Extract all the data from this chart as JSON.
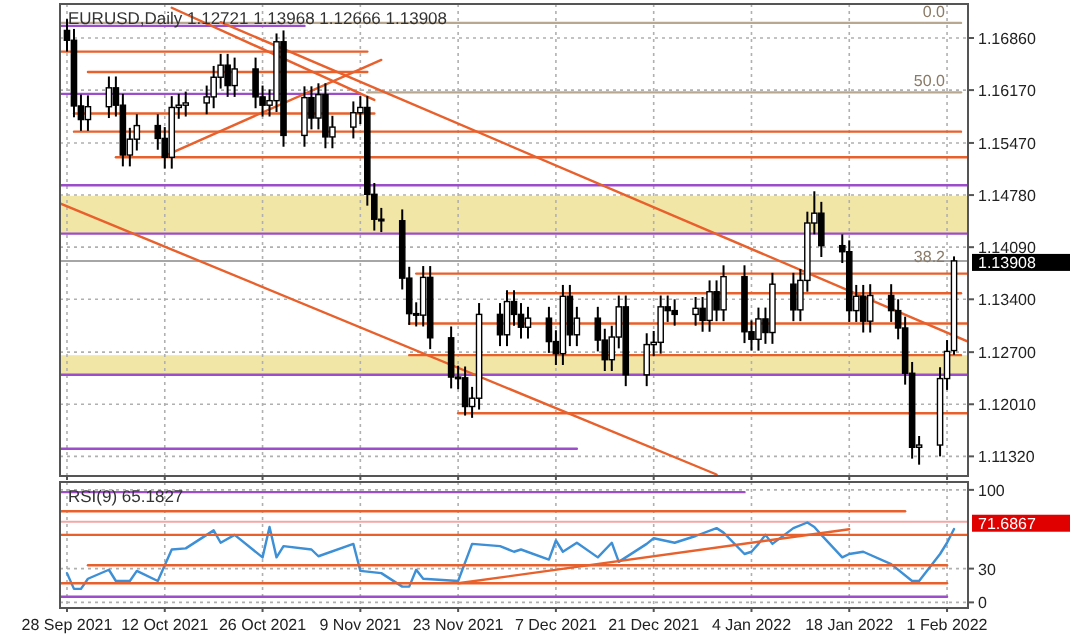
{
  "chart_data": [
    {
      "type": "candlestick",
      "title": "EURUSD,Daily 1.12721 1.13968 1.12666 1.13908",
      "color": "#000000",
      "x": [
        "2021-09-28",
        "2021-09-29",
        "2021-09-30",
        "2021-10-01",
        "2021-10-04",
        "2021-10-05",
        "2021-10-06",
        "2021-10-07",
        "2021-10-08",
        "2021-10-11",
        "2021-10-12",
        "2021-10-13",
        "2021-10-14",
        "2021-10-15",
        "2021-10-18",
        "2021-10-19",
        "2021-10-20",
        "2021-10-21",
        "2021-10-22",
        "2021-10-25",
        "2021-10-26",
        "2021-10-27",
        "2021-10-28",
        "2021-10-29",
        "2021-11-01",
        "2021-11-02",
        "2021-11-03",
        "2021-11-04",
        "2021-11-05",
        "2021-11-08",
        "2021-11-09",
        "2021-11-10",
        "2021-11-11",
        "2021-11-12",
        "2021-11-15",
        "2021-11-16",
        "2021-11-17",
        "2021-11-18",
        "2021-11-19",
        "2021-11-22",
        "2021-11-23",
        "2021-11-24",
        "2021-11-25",
        "2021-11-26",
        "2021-11-29",
        "2021-11-30",
        "2021-12-01",
        "2021-12-02",
        "2021-12-03",
        "2021-12-06",
        "2021-12-07",
        "2021-12-08",
        "2021-12-09",
        "2021-12-10",
        "2021-12-13",
        "2021-12-14",
        "2021-12-15",
        "2021-12-16",
        "2021-12-17",
        "2021-12-20",
        "2021-12-21",
        "2021-12-22",
        "2021-12-23",
        "2021-12-24",
        "2021-12-27",
        "2021-12-28",
        "2021-12-29",
        "2021-12-30",
        "2021-12-31",
        "2022-01-03",
        "2022-01-04",
        "2022-01-05",
        "2022-01-06",
        "2022-01-07",
        "2022-01-10",
        "2022-01-11",
        "2022-01-12",
        "2022-01-13",
        "2022-01-14",
        "2022-01-17",
        "2022-01-18",
        "2022-01-19",
        "2022-01-20",
        "2022-01-21",
        "2022-01-24",
        "2022-01-25",
        "2022-01-26",
        "2022-01-27",
        "2022-01-28",
        "2022-01-31",
        "2022-02-01",
        "2022-02-02"
      ],
      "ohlc": [
        [
          1.1696,
          1.1711,
          1.1668,
          1.1683
        ],
        [
          1.1683,
          1.1698,
          1.1581,
          1.1596
        ],
        [
          1.1596,
          1.1611,
          1.1563,
          1.1578
        ],
        [
          1.1578,
          1.161,
          1.1563,
          1.1595
        ],
        [
          1.1595,
          1.1635,
          1.158,
          1.162
        ],
        [
          1.162,
          1.1635,
          1.1582,
          1.1597
        ],
        [
          1.1597,
          1.1612,
          1.1516,
          1.1531
        ],
        [
          1.1531,
          1.1567,
          1.1516,
          1.1552
        ],
        [
          1.1552,
          1.1585,
          1.1537,
          1.157
        ],
        [
          1.157,
          1.1585,
          1.1538,
          1.1553
        ],
        [
          1.1553,
          1.1568,
          1.1513,
          1.1528
        ],
        [
          1.1528,
          1.1609,
          1.1513,
          1.1594
        ],
        [
          1.1594,
          1.1612,
          1.1579,
          1.1597
        ],
        [
          1.1597,
          1.1615,
          1.1582,
          1.16
        ],
        [
          1.16,
          1.1623,
          1.1585,
          1.1608
        ],
        [
          1.1608,
          1.1649,
          1.1593,
          1.1634
        ],
        [
          1.1634,
          1.1665,
          1.1619,
          1.165
        ],
        [
          1.165,
          1.1665,
          1.1608,
          1.1623
        ],
        [
          1.1623,
          1.166,
          1.1608,
          1.1645
        ],
        [
          1.1645,
          1.166,
          1.1593,
          1.1608
        ],
        [
          1.1608,
          1.1623,
          1.1582,
          1.1597
        ],
        [
          1.1597,
          1.1618,
          1.1582,
          1.1603
        ],
        [
          1.1603,
          1.1692,
          1.1588,
          1.1681
        ],
        [
          1.1681,
          1.1696,
          1.1542,
          1.1557
        ],
        [
          1.1557,
          1.1622,
          1.1542,
          1.1607
        ],
        [
          1.1607,
          1.1622,
          1.1565,
          1.158
        ],
        [
          1.158,
          1.1626,
          1.1565,
          1.1611
        ],
        [
          1.1611,
          1.1626,
          1.154,
          1.1555
        ],
        [
          1.1555,
          1.1583,
          1.154,
          1.1568
        ],
        [
          1.1568,
          1.1602,
          1.1553,
          1.1587
        ],
        [
          1.1587,
          1.1609,
          1.1572,
          1.1594
        ],
        [
          1.1594,
          1.1609,
          1.1464,
          1.1479
        ],
        [
          1.1479,
          1.1494,
          1.1431,
          1.1446
        ],
        [
          1.1446,
          1.1461,
          1.1429,
          1.1444
        ],
        [
          1.1444,
          1.1459,
          1.1353,
          1.1368
        ],
        [
          1.1368,
          1.1383,
          1.1306,
          1.1321
        ],
        [
          1.1321,
          1.1336,
          1.1304,
          1.1319
        ],
        [
          1.1319,
          1.1384,
          1.1304,
          1.1369
        ],
        [
          1.1369,
          1.1384,
          1.1274,
          1.1289
        ],
        [
          1.1289,
          1.1304,
          1.1222,
          1.1237
        ],
        [
          1.1237,
          1.1252,
          1.1221,
          1.1236
        ],
        [
          1.1236,
          1.1251,
          1.1186,
          1.1198
        ],
        [
          1.1198,
          1.1224,
          1.1183,
          1.1209
        ],
        [
          1.1209,
          1.1335,
          1.1194,
          1.132
        ],
        [
          1.132,
          1.1335,
          1.1278,
          1.1293
        ],
        [
          1.1293,
          1.1352,
          1.1278,
          1.1337
        ],
        [
          1.1337,
          1.1352,
          1.1305,
          1.132
        ],
        [
          1.132,
          1.1335,
          1.1288,
          1.1303
        ],
        [
          1.1303,
          1.133,
          1.1288,
          1.1315
        ],
        [
          1.1315,
          1.133,
          1.1269,
          1.1284
        ],
        [
          1.1284,
          1.1299,
          1.1253,
          1.1268
        ],
        [
          1.1268,
          1.1359,
          1.1253,
          1.1344
        ],
        [
          1.1344,
          1.1359,
          1.1278,
          1.1293
        ],
        [
          1.1293,
          1.133,
          1.1278,
          1.1315
        ],
        [
          1.1315,
          1.133,
          1.1271,
          1.1286
        ],
        [
          1.1286,
          1.1301,
          1.1245,
          1.126
        ],
        [
          1.126,
          1.1305,
          1.1245,
          1.129
        ],
        [
          1.129,
          1.1345,
          1.1275,
          1.133
        ],
        [
          1.133,
          1.1345,
          1.1225,
          1.124
        ],
        [
          1.124,
          1.1295,
          1.1225,
          1.128
        ],
        [
          1.128,
          1.1298,
          1.1265,
          1.1283
        ],
        [
          1.1283,
          1.1345,
          1.1268,
          1.133
        ],
        [
          1.133,
          1.1345,
          1.131,
          1.1325
        ],
        [
          1.1325,
          1.134,
          1.1305,
          1.132
        ],
        [
          1.132,
          1.1343,
          1.1305,
          1.1328
        ],
        [
          1.1328,
          1.1343,
          1.1297,
          1.1312
        ],
        [
          1.1312,
          1.1365,
          1.1297,
          1.135
        ],
        [
          1.135,
          1.1365,
          1.1311,
          1.1326
        ],
        [
          1.1326,
          1.1385,
          1.1311,
          1.137
        ],
        [
          1.137,
          1.1385,
          1.1282,
          1.1297
        ],
        [
          1.1297,
          1.1312,
          1.1272,
          1.1287
        ],
        [
          1.1287,
          1.1329,
          1.1272,
          1.1314
        ],
        [
          1.1314,
          1.1329,
          1.1281,
          1.1296
        ],
        [
          1.1296,
          1.1375,
          1.1281,
          1.136
        ],
        [
          1.136,
          1.1375,
          1.1311,
          1.1326
        ],
        [
          1.1326,
          1.138,
          1.1311,
          1.1365
        ],
        [
          1.1365,
          1.1456,
          1.135,
          1.1441
        ],
        [
          1.1441,
          1.1483,
          1.1426,
          1.1454
        ],
        [
          1.1454,
          1.1469,
          1.1396,
          1.1411
        ],
        [
          1.1411,
          1.1426,
          1.1388,
          1.1403
        ],
        [
          1.1403,
          1.1418,
          1.131,
          1.1325
        ],
        [
          1.1325,
          1.1359,
          1.131,
          1.1344
        ],
        [
          1.1344,
          1.1359,
          1.1296,
          1.1311
        ],
        [
          1.1311,
          1.136,
          1.1296,
          1.1345
        ],
        [
          1.1345,
          1.136,
          1.131,
          1.1325
        ],
        [
          1.1325,
          1.134,
          1.1287,
          1.1302
        ],
        [
          1.1302,
          1.1317,
          1.1227,
          1.1242
        ],
        [
          1.1242,
          1.1257,
          1.1129,
          1.1144
        ],
        [
          1.1144,
          1.1159,
          1.1121,
          1.1147
        ],
        [
          1.1147,
          1.125,
          1.1132,
          1.1235
        ],
        [
          1.1235,
          1.1286,
          1.122,
          1.1271
        ],
        [
          1.12721,
          1.13968,
          1.12666,
          1.13908
        ]
      ],
      "series": [
        {
          "type": "line",
          "color": "#9b4dca",
          "x": [
            "2021-09-27",
            "2021-11-01"
          ],
          "values": [
            1.1702,
            1.1702
          ]
        },
        {
          "type": "line",
          "color": "#9b4dca",
          "x": [
            "2021-09-27",
            "2021-11-09"
          ],
          "values": [
            1.1612,
            1.1612
          ]
        },
        {
          "type": "line",
          "color": "#9b4dca",
          "x": [
            "2021-09-27",
            "2022-02-04"
          ],
          "values": [
            1.1491,
            1.1491
          ]
        },
        {
          "type": "line",
          "color": "#9b4dca",
          "x": [
            "2021-09-27",
            "2022-02-04"
          ],
          "values": [
            1.1427,
            1.1427
          ]
        },
        {
          "type": "line",
          "color": "#9b4dca",
          "x": [
            "2021-09-27",
            "2022-02-04"
          ],
          "values": [
            1.124,
            1.124
          ]
        },
        {
          "type": "line",
          "color": "#9b4dca",
          "x": [
            "2021-09-27",
            "2021-12-10"
          ],
          "values": [
            1.1142,
            1.1142
          ]
        },
        {
          "type": "line",
          "color": "#b8a890",
          "x": [
            "2021-09-27",
            "2022-02-03"
          ],
          "values": [
            1.1706,
            1.1706
          ]
        },
        {
          "type": "line",
          "color": "#b8a890",
          "x": [
            "2021-11-10",
            "2022-02-03"
          ],
          "values": [
            1.1614,
            1.1614
          ]
        },
        {
          "type": "line",
          "color": "#e8602c",
          "x": [
            "2021-09-27",
            "2021-11-10"
          ],
          "values": [
            1.1668,
            1.1668
          ]
        },
        {
          "type": "line",
          "color": "#e8602c",
          "x": [
            "2021-10-01",
            "2021-11-10"
          ],
          "values": [
            1.1641,
            1.1641
          ]
        },
        {
          "type": "line",
          "color": "#e8602c",
          "x": [
            "2021-09-29",
            "2021-11-11"
          ],
          "values": [
            1.1586,
            1.1586
          ]
        },
        {
          "type": "line",
          "color": "#e8602c",
          "x": [
            "2021-09-29",
            "2022-02-03"
          ],
          "values": [
            1.1562,
            1.1562
          ]
        },
        {
          "type": "line",
          "color": "#e8602c",
          "x": [
            "2021-10-05",
            "2022-02-04"
          ],
          "values": [
            1.1528,
            1.1528
          ]
        },
        {
          "type": "line",
          "color": "#e8602c",
          "x": [
            "2021-11-17",
            "2022-02-04"
          ],
          "values": [
            1.1374,
            1.1374
          ]
        },
        {
          "type": "line",
          "color": "#e8602c",
          "x": [
            "2021-11-30",
            "2022-02-03"
          ],
          "values": [
            1.1348,
            1.1348
          ]
        },
        {
          "type": "line",
          "color": "#e8602c",
          "x": [
            "2021-11-16",
            "2022-02-04"
          ],
          "values": [
            1.1308,
            1.1308
          ]
        },
        {
          "type": "line",
          "color": "#e8602c",
          "x": [
            "2021-11-16",
            "2022-02-03"
          ],
          "values": [
            1.1266,
            1.1266
          ]
        },
        {
          "type": "line",
          "color": "#e8602c",
          "x": [
            "2021-11-23",
            "2022-02-04"
          ],
          "values": [
            1.1189,
            1.1189
          ]
        },
        {
          "type": "line",
          "color": "#e8602c",
          "x": [
            "2021-10-20",
            "2022-02-04"
          ],
          "values": [
            1.1707,
            1.1284
          ]
        },
        {
          "type": "line",
          "color": "#e8602c",
          "x": [
            "2021-09-27",
            "2021-12-30"
          ],
          "values": [
            1.1467,
            1.1108
          ]
        },
        {
          "type": "line",
          "color": "#e8602c",
          "x": [
            "2021-10-13",
            "2021-11-11"
          ],
          "values": [
            1.1726,
            1.1604
          ]
        },
        {
          "type": "line",
          "color": "#e8602c",
          "x": [
            "2021-10-12",
            "2021-11-12"
          ],
          "values": [
            1.153,
            1.1657
          ]
        }
      ],
      "bands": [
        {
          "axis": "y",
          "from": 1.1427,
          "to": 1.1477,
          "color": "#f2e6a6"
        },
        {
          "axis": "y",
          "from": 1.124,
          "to": 1.1266,
          "color": "#f2e6a6"
        }
      ],
      "ref_lines": [
        {
          "axis": "y",
          "value": 1.13908,
          "label": "1.13908",
          "color": "#000000"
        }
      ],
      "annotations": [
        {
          "text": "0.0",
          "x": "2022-02-03",
          "y": 1.1706
        },
        {
          "text": "50.0",
          "x": "2022-02-03",
          "y": 1.1614
        },
        {
          "text": "38.2",
          "x": "2022-02-03",
          "y": 1.1382
        }
      ],
      "xlim": [
        "2021-09-27",
        "2022-02-04"
      ],
      "xticks": [
        {
          "value": "2021-09-28",
          "label": null
        },
        {
          "value": "2021-10-12",
          "label": null
        },
        {
          "value": "2021-10-26",
          "label": null
        },
        {
          "value": "2021-11-09",
          "label": null
        },
        {
          "value": "2021-11-23",
          "label": null
        },
        {
          "value": "2021-12-07",
          "label": null
        },
        {
          "value": "2021-12-21",
          "label": null
        },
        {
          "value": "2022-01-04",
          "label": null
        },
        {
          "value": "2022-01-18",
          "label": null
        },
        {
          "value": "2022-02-01",
          "label": null
        }
      ],
      "ylim": [
        1.1106,
        1.1731
      ],
      "yticks": [
        {
          "value": 1.1686,
          "label": "1.16860"
        },
        {
          "value": 1.1617,
          "label": "1.16170"
        },
        {
          "value": 1.1547,
          "label": "1.15470"
        },
        {
          "value": 1.1478,
          "label": "1.14780"
        },
        {
          "value": 1.1409,
          "label": "1.14090"
        },
        {
          "value": 1.134,
          "label": "1.13400"
        },
        {
          "value": 1.127,
          "label": "1.12700"
        },
        {
          "value": 1.1201,
          "label": "1.12010"
        },
        {
          "value": 1.1132,
          "label": "1.11320"
        }
      ],
      "grid": true,
      "tick_labels": "y"
    },
    {
      "type": "line",
      "title": "RSI(9) 65.1827",
      "series": [
        {
          "color": "#3d8fd6",
          "x": [
            "2021-09-28",
            "2021-09-29",
            "2021-09-30",
            "2021-10-01",
            "2021-10-04",
            "2021-10-05",
            "2021-10-07",
            "2021-10-08",
            "2021-10-11",
            "2021-10-13",
            "2021-10-15",
            "2021-10-19",
            "2021-10-20",
            "2021-10-22",
            "2021-10-26",
            "2021-10-27",
            "2021-10-28",
            "2021-10-29",
            "2021-11-02",
            "2021-11-03",
            "2021-11-08",
            "2021-11-09",
            "2021-11-12",
            "2021-11-15",
            "2021-11-16",
            "2021-11-17",
            "2021-11-18",
            "2021-11-23",
            "2021-11-25",
            "2021-11-29",
            "2021-12-01",
            "2021-12-02",
            "2021-12-06",
            "2021-12-07",
            "2021-12-08",
            "2021-12-10",
            "2021-12-13",
            "2021-12-15",
            "2021-12-16",
            "2021-12-20",
            "2021-12-21",
            "2021-12-24",
            "2021-12-27",
            "2021-12-30",
            "2021-12-31",
            "2022-01-03",
            "2022-01-04",
            "2022-01-05",
            "2022-01-06",
            "2022-01-07",
            "2022-01-10",
            "2022-01-12",
            "2022-01-13",
            "2022-01-14",
            "2022-01-17",
            "2022-01-18",
            "2022-01-20",
            "2022-01-24",
            "2022-01-27",
            "2022-01-28",
            "2022-01-31",
            "2022-02-01",
            "2022-02-02"
          ],
          "values": [
            26,
            12,
            12,
            21,
            29,
            19,
            19,
            28,
            19,
            47,
            48,
            64,
            53,
            60,
            40,
            67,
            40,
            50,
            47,
            41,
            52,
            28,
            26,
            14,
            14,
            29,
            21,
            19,
            52,
            50,
            45,
            47,
            38,
            55,
            45,
            53,
            40,
            53,
            36,
            52,
            57,
            53,
            59,
            66,
            62,
            43,
            45,
            52,
            60,
            52,
            66,
            71,
            67,
            60,
            40,
            43,
            45,
            34,
            19,
            19,
            43,
            53,
            65.1827
          ]
        },
        {
          "color": "#9b4dca",
          "x": [
            "2021-09-27",
            "2022-01-03"
          ],
          "values": [
            98,
            98
          ]
        },
        {
          "color": "#9b4dca",
          "x": [
            "2021-09-27",
            "2022-02-01"
          ],
          "values": [
            5,
            5
          ]
        },
        {
          "color": "#e8602c",
          "x": [
            "2021-09-27",
            "2022-01-26"
          ],
          "values": [
            81,
            81
          ]
        },
        {
          "color": "#e8602c",
          "x": [
            "2021-09-27",
            "2022-02-04"
          ],
          "values": [
            60,
            60
          ]
        },
        {
          "color": "#e8602c",
          "x": [
            "2021-10-01",
            "2022-02-01"
          ],
          "values": [
            33,
            33
          ]
        },
        {
          "color": "#e8602c",
          "x": [
            "2021-09-27",
            "2022-02-01"
          ],
          "values": [
            17,
            17
          ]
        },
        {
          "color": "#e8602c",
          "x": [
            "2021-11-23",
            "2022-01-18"
          ],
          "values": [
            17,
            65
          ]
        }
      ],
      "ref_lines": [
        {
          "axis": "y",
          "value": 71.6867,
          "label": "71.6867",
          "color": "#e00000"
        }
      ],
      "xlim": [
        "2021-09-27",
        "2022-02-04"
      ],
      "xticks": [
        {
          "value": "2021-09-28",
          "label": "28 Sep 2021"
        },
        {
          "value": "2021-10-12",
          "label": "12 Oct 2021"
        },
        {
          "value": "2021-10-26",
          "label": "26 Oct 2021"
        },
        {
          "value": "2021-11-09",
          "label": "9 Nov 2021"
        },
        {
          "value": "2021-11-23",
          "label": "23 Nov 2021"
        },
        {
          "value": "2021-12-07",
          "label": "7 Dec 2021"
        },
        {
          "value": "2021-12-21",
          "label": "21 Dec 2021"
        },
        {
          "value": "2022-01-04",
          "label": "4 Jan 2022"
        },
        {
          "value": "2022-01-18",
          "label": "18 Jan 2022"
        },
        {
          "value": "2022-02-01",
          "label": "1 Feb 2022"
        }
      ],
      "ylim": [
        -5,
        107
      ],
      "yticks": [
        100,
        30,
        0
      ],
      "grid": true
    }
  ]
}
